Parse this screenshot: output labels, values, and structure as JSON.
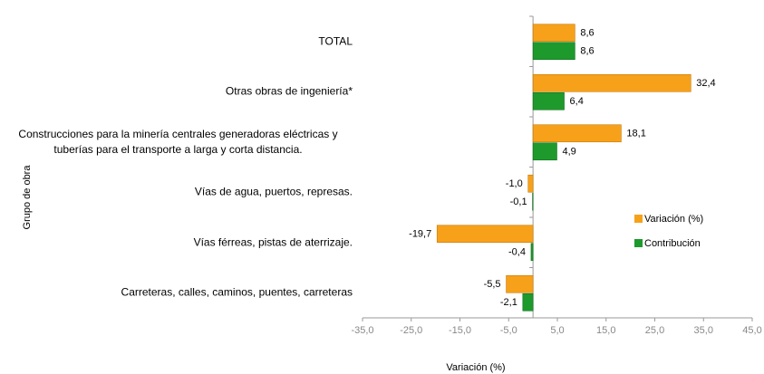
{
  "chart_data": {
    "type": "hbar",
    "categories": [
      "TOTAL",
      "Otras obras de ingeniería*",
      "Construcciones para la minería centrales generadoras eléctricas y tuberías para el transporte a larga y corta distancia.",
      "Vías de agua, puertos, represas.",
      "Vías férreas, pistas de aterrizaje.",
      "Carreteras, calles, caminos, puentes, carreteras"
    ],
    "series": [
      {
        "name": "Variación (%)",
        "color": "#f7a11a",
        "values": [
          8.6,
          32.4,
          18.1,
          -1.0,
          -19.7,
          -5.5
        ],
        "value_labels": [
          "8,6",
          "32,4",
          "18,1",
          "-1,0",
          "-19,7",
          "-5,5"
        ]
      },
      {
        "name": "Contribución",
        "color": "#1e9a2c",
        "values": [
          8.6,
          6.4,
          4.9,
          -0.1,
          -0.4,
          -2.1
        ],
        "value_labels": [
          "8,6",
          "6,4",
          "4,9",
          "-0,1",
          "-0,4",
          "-2,1"
        ]
      }
    ],
    "xlim": [
      -35,
      45
    ],
    "xticks": [
      {
        "value": -35,
        "label": "-35,0"
      },
      {
        "value": -25,
        "label": "-25,0"
      },
      {
        "value": -15,
        "label": "-15,0"
      },
      {
        "value": -5,
        "label": "-5,0"
      },
      {
        "value": 5,
        "label": "5,0"
      },
      {
        "value": 15,
        "label": "15,0"
      },
      {
        "value": 25,
        "label": "25,0"
      },
      {
        "value": 35,
        "label": "35,0"
      },
      {
        "value": 45,
        "label": "45,0"
      }
    ],
    "xlabel": "Variación (%)",
    "ylabel": "Grupo de obra",
    "legend": "right"
  }
}
